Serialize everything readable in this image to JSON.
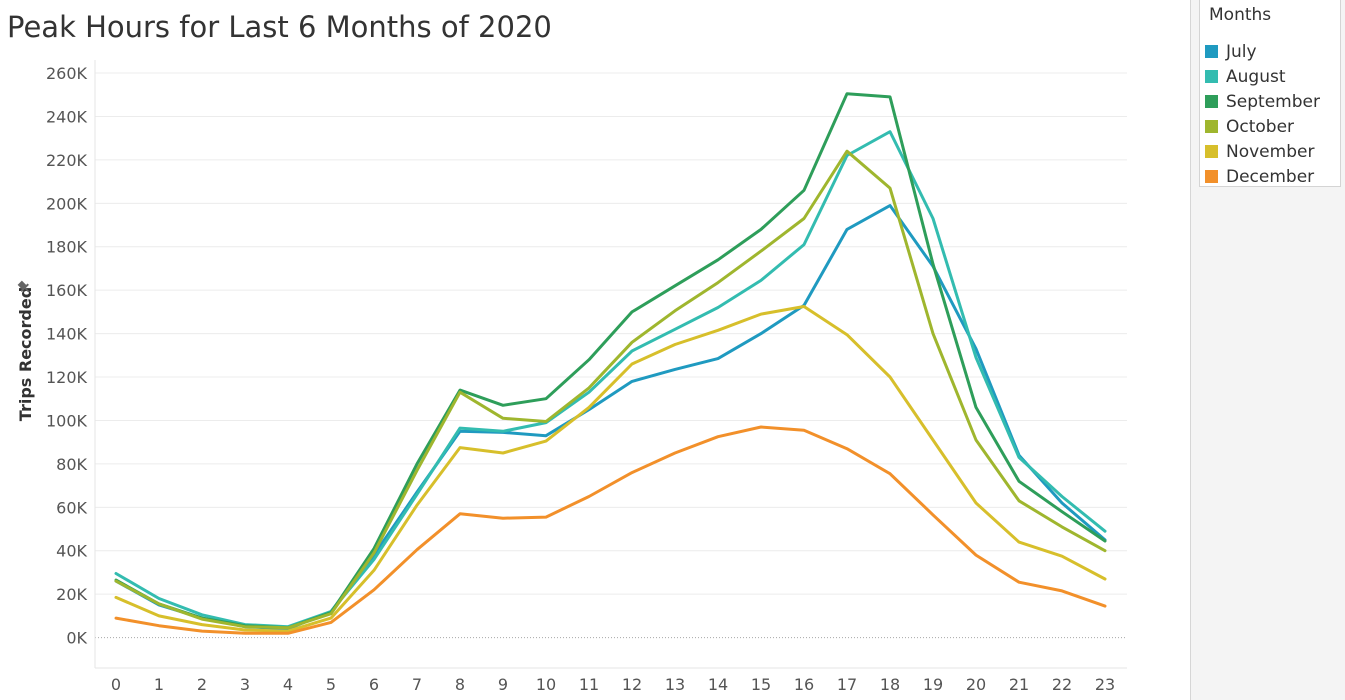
{
  "title": "Peak Hours for Last 6 Months of 2020",
  "legend": {
    "title": "Months",
    "items": [
      {
        "label": "July",
        "color": "#1f9ac0"
      },
      {
        "label": "August",
        "color": "#33bcb0"
      },
      {
        "label": "September",
        "color": "#2e9e5a"
      },
      {
        "label": "October",
        "color": "#9fb62e"
      },
      {
        "label": "November",
        "color": "#d7bf2b"
      },
      {
        "label": "December",
        "color": "#f2902a"
      }
    ]
  },
  "chart_data": {
    "type": "line",
    "title": "Peak Hours for Last 6 Months of 2020",
    "xlabel": "",
    "ylabel": "Trips Recorded",
    "x": [
      0,
      1,
      2,
      3,
      4,
      5,
      6,
      7,
      8,
      9,
      10,
      11,
      12,
      13,
      14,
      15,
      16,
      17,
      18,
      19,
      20,
      21,
      22,
      23
    ],
    "ylim": [
      -14000,
      266000
    ],
    "yticks": [
      0,
      20000,
      40000,
      60000,
      80000,
      100000,
      120000,
      140000,
      160000,
      180000,
      200000,
      220000,
      240000,
      260000
    ],
    "ytick_labels": [
      "0K",
      "20K",
      "40K",
      "60K",
      "80K",
      "100K",
      "120K",
      "140K",
      "160K",
      "180K",
      "200K",
      "220K",
      "240K",
      "260K"
    ],
    "grid": true,
    "legend_position": "right",
    "series": [
      {
        "name": "July",
        "color": "#1f9ac0",
        "values": [
          26000,
          15000,
          9000,
          5000,
          4000,
          12000,
          38000,
          67000,
          95000,
          94500,
          93000,
          105000,
          118000,
          123500,
          128500,
          140000,
          153000,
          188000,
          199000,
          171000,
          133000,
          84000,
          62000,
          45000
        ]
      },
      {
        "name": "August",
        "color": "#33bcb0",
        "values": [
          29500,
          18000,
          10500,
          6000,
          5000,
          12000,
          36000,
          66000,
          96500,
          95000,
          99000,
          113000,
          132000,
          142000,
          152000,
          164500,
          181000,
          222000,
          233000,
          193000,
          129000,
          83000,
          65000,
          49000
        ]
      },
      {
        "name": "September",
        "color": "#2e9e5a",
        "values": [
          26500,
          15500,
          9000,
          5500,
          4500,
          11500,
          41000,
          80000,
          114000,
          107000,
          110000,
          128000,
          150000,
          162000,
          174000,
          188000,
          206000,
          250500,
          249000,
          172000,
          106000,
          72000,
          58000,
          44500
        ]
      },
      {
        "name": "October",
        "color": "#9fb62e",
        "values": [
          26000,
          15500,
          8500,
          5000,
          4500,
          11000,
          39000,
          77000,
          113000,
          101000,
          99500,
          115000,
          136000,
          150500,
          163500,
          178000,
          193000,
          224000,
          207000,
          140000,
          91000,
          63000,
          51000,
          40000
        ]
      },
      {
        "name": "November",
        "color": "#d7bf2b",
        "values": [
          18500,
          10000,
          6000,
          3500,
          3000,
          9000,
          31000,
          61000,
          87500,
          85000,
          90500,
          106000,
          126000,
          135000,
          141500,
          149000,
          152500,
          139500,
          120000,
          91000,
          62000,
          44000,
          37500,
          27000
        ]
      },
      {
        "name": "December",
        "color": "#f2902a",
        "values": [
          9000,
          5500,
          3000,
          2000,
          2000,
          7000,
          22000,
          40500,
          57000,
          55000,
          55500,
          65000,
          76000,
          85000,
          92500,
          97000,
          95500,
          87000,
          75500,
          56500,
          38000,
          25500,
          21500,
          14500
        ]
      }
    ]
  }
}
